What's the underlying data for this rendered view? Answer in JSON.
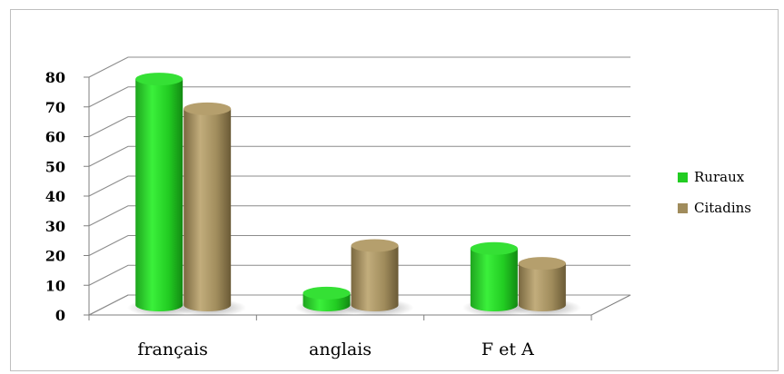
{
  "chart_data": {
    "type": "bar",
    "categories": [
      "français",
      "anglais",
      "F et A"
    ],
    "series": [
      {
        "name": "Ruraux",
        "values": [
          76,
          4,
          19
        ],
        "color": "#22cc22"
      },
      {
        "name": "Citadins",
        "values": [
          66,
          20,
          14
        ],
        "color": "#a08c5c"
      }
    ],
    "ylim": [
      0,
      80
    ],
    "yticks": [
      "0",
      "10",
      "20",
      "30",
      "40",
      "50",
      "60",
      "70",
      "80"
    ],
    "grid": true,
    "legend_position": "right",
    "style": "3d-cylinder"
  }
}
